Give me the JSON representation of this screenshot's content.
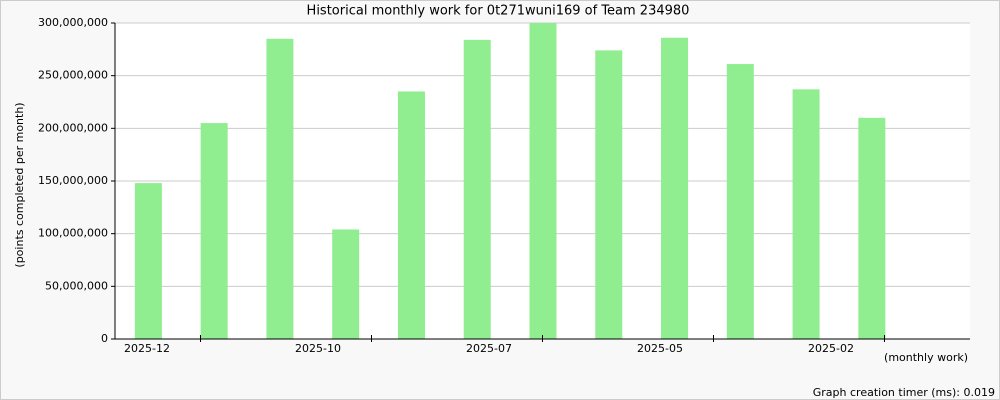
{
  "chart_data": {
    "type": "bar",
    "title": "Historical monthly work for 0t271wuni169 of Team 234980",
    "y_label": "(points completed per month)",
    "x_label": "(monthly work)",
    "footer": "Graph creation timer (ms): 0.019",
    "categories": [
      null,
      null,
      null,
      null,
      null,
      null,
      null,
      null,
      null,
      null,
      null,
      null
    ],
    "x_labels": [
      "2025-12",
      "2025-10",
      "2025-07",
      "2025-05",
      "2025-02"
    ],
    "values": [
      148000000,
      205000000,
      285000000,
      104000000,
      235000000,
      284000000,
      300000000,
      274000000,
      286000000,
      261000000,
      237000000,
      210000000
    ],
    "color": "#90ee90",
    "ylim": [
      0,
      300000000
    ],
    "yticks": [
      {
        "value": 0,
        "label": "0"
      },
      {
        "value": 50000000,
        "label": "50,000,000"
      },
      {
        "value": 100000000,
        "label": "100,000,000"
      },
      {
        "value": 150000000,
        "label": "150,000,000"
      },
      {
        "value": 200000000,
        "label": "200,000,000"
      },
      {
        "value": 250000000,
        "label": "250,000,000"
      },
      {
        "value": 300000000,
        "label": "300,000,000"
      }
    ],
    "grid": true
  }
}
